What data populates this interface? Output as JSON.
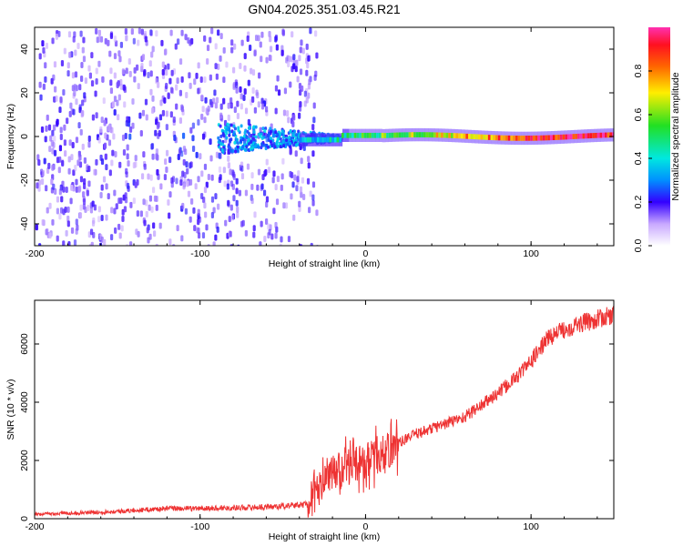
{
  "title": "GN04.2025.351.03.45.R21",
  "chart_data": [
    {
      "type": "heatmap",
      "title": "GN04.2025.351.03.45.R21",
      "xlabel": "Height of straight line (km)",
      "ylabel": "Frequency (Hz)",
      "xlim": [
        -200,
        150
      ],
      "ylim": [
        -50,
        50
      ],
      "xticks": [
        -200,
        -100,
        0,
        100
      ],
      "yticks": [
        -40,
        -20,
        0,
        20,
        40
      ],
      "colorbar": {
        "label": "Normalized spectral amplitude",
        "range": [
          0,
          1
        ],
        "ticks": [
          0.0,
          0.2,
          0.4,
          0.6,
          0.8
        ]
      },
      "features": {
        "noise_region_x": [
          -200,
          -30
        ],
        "carrier_frequency_hz": 0,
        "carrier_detected_from_x": -90,
        "carrier_peak_amplitude": 1.0
      }
    },
    {
      "type": "line",
      "xlabel": "Height of straight line (km)",
      "ylabel": "SNR (10 * v/v)",
      "xlim": [
        -200,
        150
      ],
      "ylim": [
        0,
        7500
      ],
      "xticks": [
        -200,
        -100,
        0,
        100
      ],
      "yticks": [
        0,
        2000,
        4000,
        6000
      ],
      "series": [
        {
          "name": "SNR",
          "color": "#ee3333",
          "x": [
            -200,
            -150,
            -120,
            -100,
            -80,
            -60,
            -45,
            -35,
            -25,
            -20,
            -15,
            -10,
            -5,
            0,
            5,
            10,
            15,
            20,
            30,
            40,
            50,
            60,
            70,
            80,
            90,
            100,
            110,
            120,
            130,
            140,
            150
          ],
          "y": [
            150,
            250,
            350,
            350,
            380,
            400,
            450,
            500,
            1200,
            1500,
            1700,
            1800,
            1900,
            2000,
            2100,
            2200,
            2400,
            2600,
            2900,
            3100,
            3300,
            3500,
            3900,
            4300,
            4800,
            5400,
            6200,
            6500,
            6700,
            6850,
            7000
          ]
        }
      ]
    }
  ]
}
